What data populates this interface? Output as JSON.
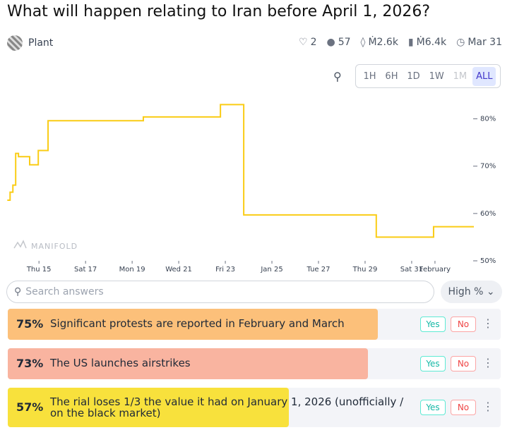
{
  "header": {
    "title": "What will happen relating to Iran before April 1, 2026?",
    "creator": "Plant",
    "stats": [
      "2",
      "57",
      "Ṁ2.6k",
      "Ṁ6.4k",
      "Mar 31"
    ]
  },
  "time_ranges": [
    "1H",
    "6H",
    "1D",
    "1W",
    "1M",
    "ALL"
  ],
  "chart_data": {
    "type": "line",
    "watermark": "MANIFOLD",
    "x": [
      13.64,
      13.76,
      13.88,
      14.0,
      14.12,
      14.6,
      14.97,
      15.39,
      19.48,
      22.79,
      23.79,
      29.48,
      31.94,
      33.67
    ],
    "series": [
      {
        "color": "#facc15",
        "values": [
          62.8,
          64.5,
          66,
          72.7,
          72,
          70.3,
          73.3,
          79.6,
          80.4,
          83,
          59.7,
          55,
          57.2,
          57.2
        ]
      }
    ],
    "xlim": [
      13.6,
      33.7
    ],
    "ylim": [
      50,
      85
    ],
    "xticks": [
      {
        "value": 15,
        "label": "Thu 15"
      },
      {
        "value": 17,
        "label": "Sat 17"
      },
      {
        "value": 19,
        "label": "Mon 19"
      },
      {
        "value": 21,
        "label": "Wed 21"
      },
      {
        "value": 23,
        "label": "Fri 23"
      },
      {
        "value": 25,
        "label": "Jan 25"
      },
      {
        "value": 27,
        "label": "Tue 27"
      },
      {
        "value": 29,
        "label": "Thu 29"
      },
      {
        "value": 31,
        "label": "Sat 31"
      },
      {
        "value": 32,
        "label": "February"
      }
    ],
    "yticks": [
      {
        "value": 50,
        "label": "50%"
      },
      {
        "value": 60,
        "label": "60%"
      },
      {
        "value": 70,
        "label": "70%"
      },
      {
        "value": 80,
        "label": "80%"
      }
    ]
  },
  "search": {
    "placeholder": "Search answers",
    "sort": "High %"
  },
  "answers": [
    {
      "prob": {
        "value": 75,
        "label": "75%"
      },
      "text": "Significant protests are reported in February and March",
      "color": "#fcc07a",
      "yes": "Yes",
      "no": "No"
    },
    {
      "prob": {
        "value": 73,
        "label": "73%"
      },
      "text": "The US launches airstrikes",
      "color": "#f9b4a0",
      "yes": "Yes",
      "no": "No"
    },
    {
      "prob": {
        "value": 57,
        "label": "57%"
      },
      "text": "The rial loses 1/3 the value it had on January 1, 2026 (unofficially / on the black market)",
      "color": "#f8e13c",
      "yes": "Yes",
      "no": "No"
    }
  ]
}
